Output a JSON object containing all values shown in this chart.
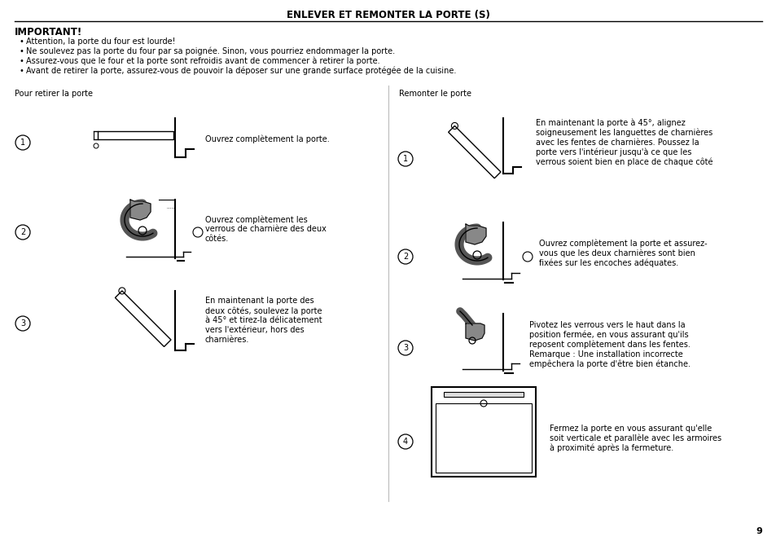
{
  "title": "ENLEVER ET REMONTER LA PORTE (S)",
  "bg_color": "#ffffff",
  "text_color": "#000000",
  "important_header": "IMPORTANT!",
  "bullets": [
    "Attention, la porte du four est lourde!",
    "Ne soulevez pas la porte du four par sa poignée. Sinon, vous pourriez endommager la porte.",
    "Assurez-vous que le four et la porte sont refroidis avant de commencer à retirer la porte.",
    "Avant de retirer la porte, assurez-vous de pouvoir la déposer sur une grande surface protégée de la cuisine."
  ],
  "left_section_title": "Pour retirer la porte",
  "right_section_title": "Remonter le porte",
  "left_steps": [
    "Ouvrez complètement la porte.",
    "Ouvrez complètement les\nverrous de charnière des deux\ncôtés.",
    "En maintenant la porte des\ndeux côtés, soulevez la porte\nà 45° et tirez-la délicatement\nvers l'extérieur, hors des\ncharnières."
  ],
  "right_steps": [
    "En maintenant la porte à 45°, alignez\nsoigneusement les languettes de charnières\navec les fentes de charnières. Poussez la\nporte vers l'intérieur jusqu'à ce que les\nverrous soient bien en place de chaque côté",
    "Ouvrez complètement la porte et assurez-\nvous que les deux charnières sont bien\nfixées sur les encoches adéquates.",
    "Pivotez les verrous vers le haut dans la\nposition fermée, en vous assurant qu'ils\nreposent complètement dans les fentes.\nRemarque : Une installation incorrecte\nempêchera la porte d'être bien étanche.",
    "Fermez la porte en vous assurant qu'elle\nsoit verticale et parallèle avec les armoires\nà proximité après la fermeture."
  ],
  "page_number": "9",
  "divider_color": "#000000",
  "font_size_title": 8.5,
  "font_size_body": 7.0,
  "font_size_important": 8.5,
  "font_size_step_text": 7.0
}
